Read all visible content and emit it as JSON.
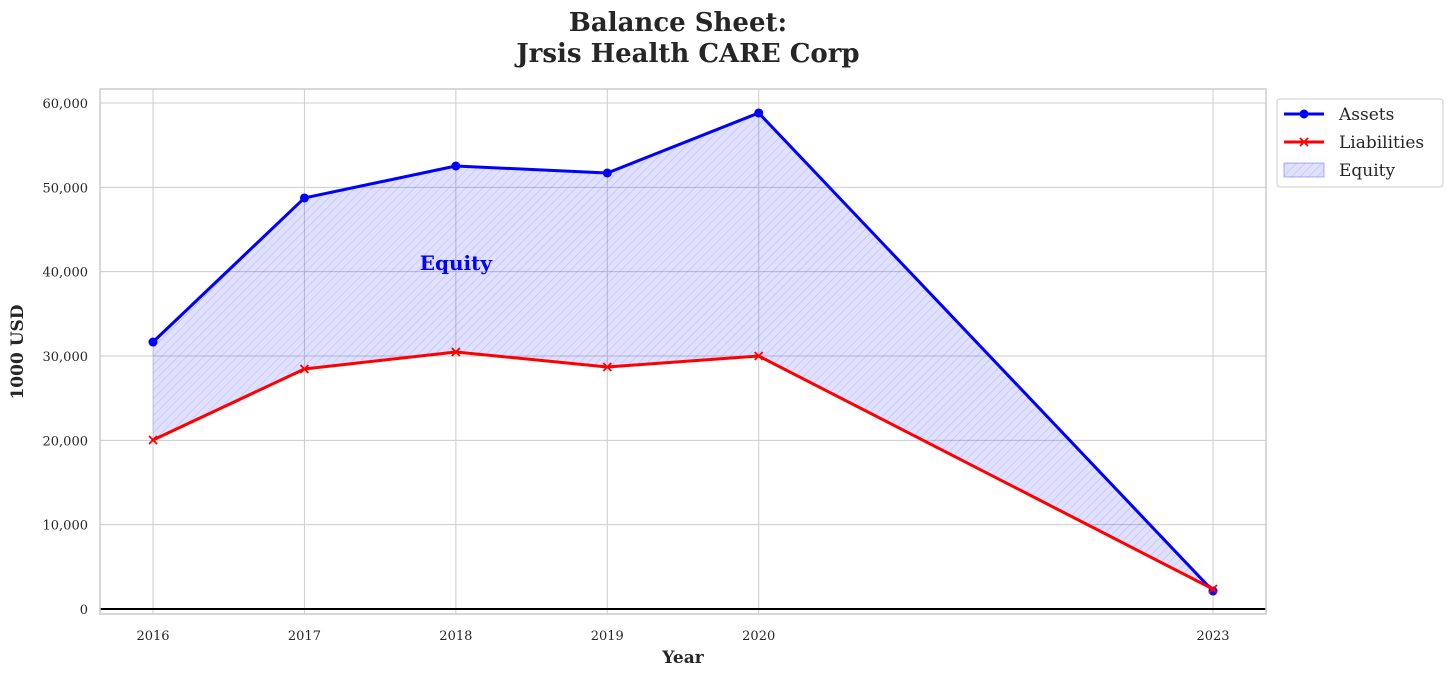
{
  "chart_data": {
    "type": "line",
    "title_line1": "Balance Sheet:",
    "title_line2": "Jrsis Health CARE Corp",
    "xlabel": "Year",
    "ylabel": "1000 USD",
    "x": [
      2016,
      2017,
      2018,
      2019,
      2020,
      2023
    ],
    "x_tick_labels": [
      "2016",
      "2017",
      "2018",
      "2019",
      "2020",
      "2023"
    ],
    "xlim": [
      2015.65,
      2023.35
    ],
    "ylim": [
      -590,
      61660
    ],
    "y_ticks": [
      0,
      10000,
      20000,
      30000,
      40000,
      50000,
      60000
    ],
    "y_tick_labels": [
      "0",
      "10,000",
      "20,000",
      "30,000",
      "40,000",
      "50,000",
      "60,000"
    ],
    "grid": true,
    "series": [
      {
        "name": "Assets",
        "color": "#0000ff",
        "marker": "circle",
        "values": [
          31660,
          48740,
          52530,
          51700,
          58820,
          2130
        ]
      },
      {
        "name": "Liabilities",
        "color": "#ff0000",
        "marker": "x",
        "values": [
          20040,
          28460,
          30480,
          28700,
          30000,
          2370
        ]
      }
    ],
    "fill": {
      "name": "Equity",
      "between": [
        "Assets",
        "Liabilities"
      ],
      "color": "#0000ff",
      "alpha": 0.12,
      "hatch": "////"
    },
    "annotation": {
      "text": "Equity",
      "x": 2018,
      "y": 41000,
      "color": "#0000ff"
    },
    "legend_position": "outside-top-right",
    "legend": [
      "Assets",
      "Liabilities",
      "Equity"
    ]
  }
}
